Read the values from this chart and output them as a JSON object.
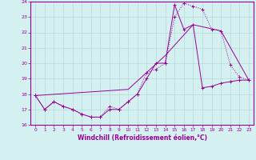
{
  "xlabel": "Windchill (Refroidissement éolien,°C)",
  "bg_color": "#d4f0f0",
  "line_color": "#990099",
  "grid_color": "#b8dada",
  "xlim": [
    -0.5,
    23.5
  ],
  "ylim": [
    16,
    24
  ],
  "yticks": [
    16,
    17,
    18,
    19,
    20,
    21,
    22,
    23,
    24
  ],
  "xticks": [
    0,
    1,
    2,
    3,
    4,
    5,
    6,
    7,
    8,
    9,
    10,
    11,
    12,
    13,
    14,
    15,
    16,
    17,
    18,
    19,
    20,
    21,
    22,
    23
  ],
  "line1_x": [
    0,
    1,
    2,
    3,
    4,
    5,
    6,
    7,
    8,
    9,
    10,
    11,
    12,
    13,
    14,
    15,
    16,
    17,
    18,
    19,
    20,
    21,
    22,
    23
  ],
  "line1_y": [
    17.9,
    17.0,
    17.5,
    17.2,
    17.0,
    16.7,
    16.5,
    16.5,
    17.2,
    17.0,
    17.5,
    18.0,
    19.4,
    19.6,
    20.0,
    23.0,
    23.9,
    23.7,
    23.5,
    22.2,
    22.1,
    19.9,
    19.1,
    18.9
  ],
  "line2_x": [
    0,
    1,
    2,
    3,
    4,
    5,
    6,
    7,
    8,
    9,
    10,
    11,
    12,
    13,
    14,
    15,
    16,
    17,
    18,
    19,
    20,
    21,
    22,
    23
  ],
  "line2_y": [
    17.9,
    17.0,
    17.5,
    17.2,
    17.0,
    16.7,
    16.5,
    16.5,
    17.0,
    17.0,
    17.5,
    18.0,
    19.0,
    20.0,
    20.0,
    23.8,
    22.2,
    22.5,
    18.4,
    18.5,
    18.7,
    18.8,
    18.9,
    18.9
  ],
  "line3_x": [
    0,
    10,
    14,
    17,
    20,
    23
  ],
  "line3_y": [
    17.9,
    18.3,
    20.5,
    22.5,
    22.1,
    18.9
  ]
}
